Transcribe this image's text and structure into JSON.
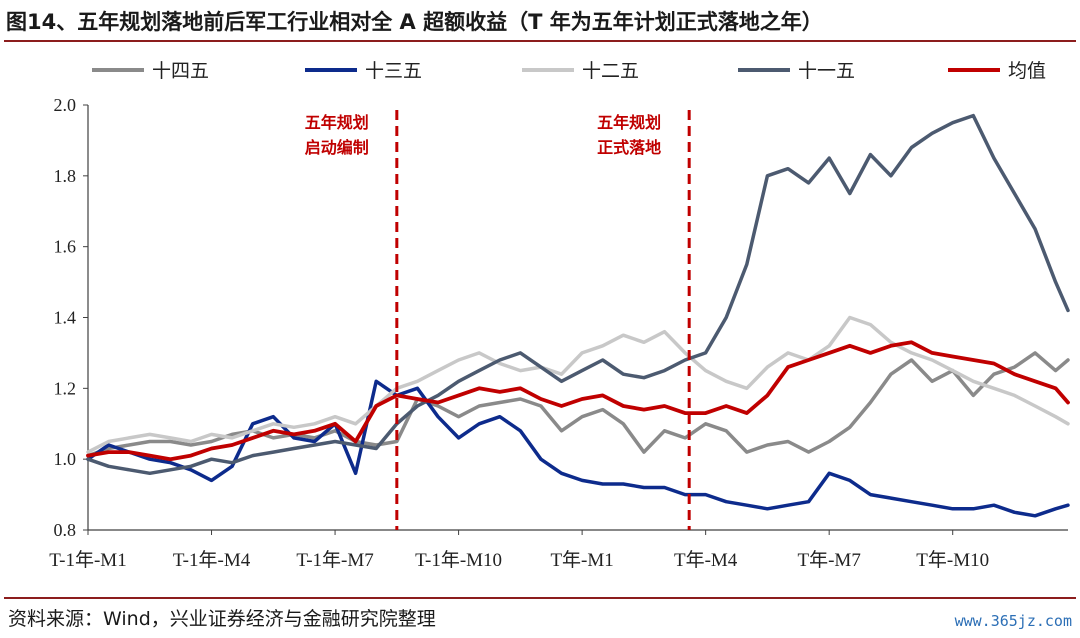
{
  "header": {
    "title": "图14、五年规划落地前后军工行业相对全 A 超额收益（T 年为五年计划正式落地之年）"
  },
  "footer": {
    "source": "资料来源：Wind，兴业证券经济与金融研究院整理",
    "watermark": "www.365jz.com"
  },
  "colors": {
    "s14": "#8a8a8a",
    "s13": "#0d2b8c",
    "s12": "#c8c8c8",
    "s11": "#4c5a70",
    "mean": "#c00000",
    "vline": "#c00000",
    "axis": "#404040"
  },
  "chart_data": {
    "type": "line",
    "xlabel": "",
    "ylabel": "",
    "ylim": [
      0.8,
      2.0
    ],
    "yticks": [
      "0.8",
      "1.0",
      "1.2",
      "1.4",
      "1.6",
      "1.8",
      "2.0"
    ],
    "x_ticks": [
      "T-1年-M1",
      "T-1年-M4",
      "T-1年-M7",
      "T-1年-M10",
      "T年-M1",
      "T年-M4",
      "T年-M7",
      "T年-M10"
    ],
    "x_range_months": [
      0,
      23.8
    ],
    "legend_position": "top",
    "grid": false,
    "annotations": [
      {
        "text_lines": [
          "五年规划",
          "启动编制"
        ],
        "x_month": 7.5
      },
      {
        "text_lines": [
          "五年规划",
          "正式落地"
        ],
        "x_month": 14.6
      }
    ],
    "series": [
      {
        "name": "十四五",
        "color_key": "s14",
        "x": [
          0,
          0.5,
          1,
          1.5,
          2,
          2.5,
          3,
          3.5,
          4,
          4.5,
          5,
          5.5,
          6,
          6.5,
          7,
          7.5,
          8,
          8.5,
          9,
          9.5,
          10,
          10.5,
          11,
          11.5,
          12,
          12.5,
          13,
          13.5,
          14,
          14.5,
          15,
          15.5,
          16,
          16.5,
          17,
          17.5,
          18,
          18.5,
          19,
          19.5,
          20,
          20.5,
          21,
          21.5,
          22,
          22.5,
          23,
          23.5,
          23.8
        ],
        "y": [
          1.01,
          1.03,
          1.04,
          1.05,
          1.05,
          1.04,
          1.05,
          1.07,
          1.08,
          1.06,
          1.07,
          1.06,
          1.08,
          1.05,
          1.04,
          1.05,
          1.17,
          1.15,
          1.12,
          1.15,
          1.16,
          1.17,
          1.15,
          1.08,
          1.12,
          1.14,
          1.1,
          1.02,
          1.08,
          1.06,
          1.1,
          1.08,
          1.02,
          1.04,
          1.05,
          1.02,
          1.05,
          1.09,
          1.16,
          1.24,
          1.28,
          1.22,
          1.25,
          1.18,
          1.24,
          1.26,
          1.3,
          1.25,
          1.28
        ]
      },
      {
        "name": "十三五",
        "color_key": "s13",
        "x": [
          0,
          0.5,
          1,
          1.5,
          2,
          2.5,
          3,
          3.5,
          4,
          4.5,
          5,
          5.5,
          6,
          6.5,
          7,
          7.5,
          8,
          8.5,
          9,
          9.5,
          10,
          10.5,
          11,
          11.5,
          12,
          12.5,
          13,
          13.5,
          14,
          14.5,
          15,
          15.5,
          16,
          16.5,
          17,
          17.5,
          18,
          18.5,
          19,
          19.5,
          20,
          20.5,
          21,
          21.5,
          22,
          22.5,
          23,
          23.5,
          23.8
        ],
        "y": [
          1.0,
          1.04,
          1.02,
          1.0,
          0.99,
          0.97,
          0.94,
          0.98,
          1.1,
          1.12,
          1.06,
          1.05,
          1.1,
          0.96,
          1.22,
          1.18,
          1.2,
          1.12,
          1.06,
          1.1,
          1.12,
          1.08,
          1.0,
          0.96,
          0.94,
          0.93,
          0.93,
          0.92,
          0.92,
          0.9,
          0.9,
          0.88,
          0.87,
          0.86,
          0.87,
          0.88,
          0.96,
          0.94,
          0.9,
          0.89,
          0.88,
          0.87,
          0.86,
          0.86,
          0.87,
          0.85,
          0.84,
          0.86,
          0.87
        ]
      },
      {
        "name": "十二五",
        "color_key": "s12",
        "x": [
          0,
          0.5,
          1,
          1.5,
          2,
          2.5,
          3,
          3.5,
          4,
          4.5,
          5,
          5.5,
          6,
          6.5,
          7,
          7.5,
          8,
          8.5,
          9,
          9.5,
          10,
          10.5,
          11,
          11.5,
          12,
          12.5,
          13,
          13.5,
          14,
          14.5,
          15,
          15.5,
          16,
          16.5,
          17,
          17.5,
          18,
          18.5,
          19,
          19.5,
          20,
          20.5,
          21,
          21.5,
          22,
          22.5,
          23,
          23.5,
          23.8
        ],
        "y": [
          1.02,
          1.05,
          1.06,
          1.07,
          1.06,
          1.05,
          1.07,
          1.06,
          1.08,
          1.1,
          1.09,
          1.1,
          1.12,
          1.1,
          1.15,
          1.2,
          1.22,
          1.25,
          1.28,
          1.3,
          1.27,
          1.25,
          1.26,
          1.24,
          1.3,
          1.32,
          1.35,
          1.33,
          1.36,
          1.3,
          1.25,
          1.22,
          1.2,
          1.26,
          1.3,
          1.28,
          1.32,
          1.4,
          1.38,
          1.33,
          1.3,
          1.28,
          1.25,
          1.22,
          1.2,
          1.18,
          1.15,
          1.12,
          1.1
        ]
      },
      {
        "name": "十一五",
        "color_key": "s11",
        "x": [
          0,
          0.5,
          1,
          1.5,
          2,
          2.5,
          3,
          3.5,
          4,
          4.5,
          5,
          5.5,
          6,
          6.5,
          7,
          7.5,
          8,
          8.5,
          9,
          9.5,
          10,
          10.5,
          11,
          11.5,
          12,
          12.5,
          13,
          13.5,
          14,
          14.5,
          15,
          15.5,
          16,
          16.5,
          17,
          17.5,
          18,
          18.5,
          19,
          19.5,
          20,
          20.5,
          21,
          21.5,
          22,
          22.5,
          23,
          23.5,
          23.8
        ],
        "y": [
          1.0,
          0.98,
          0.97,
          0.96,
          0.97,
          0.98,
          1.0,
          0.99,
          1.01,
          1.02,
          1.03,
          1.04,
          1.05,
          1.04,
          1.03,
          1.1,
          1.15,
          1.18,
          1.22,
          1.25,
          1.28,
          1.3,
          1.26,
          1.22,
          1.25,
          1.28,
          1.24,
          1.23,
          1.25,
          1.28,
          1.3,
          1.4,
          1.55,
          1.8,
          1.82,
          1.78,
          1.85,
          1.75,
          1.86,
          1.8,
          1.88,
          1.92,
          1.95,
          1.97,
          1.85,
          1.75,
          1.65,
          1.5,
          1.42
        ]
      },
      {
        "name": "均值",
        "color_key": "mean",
        "x": [
          0,
          0.5,
          1,
          1.5,
          2,
          2.5,
          3,
          3.5,
          4,
          4.5,
          5,
          5.5,
          6,
          6.5,
          7,
          7.5,
          8,
          8.5,
          9,
          9.5,
          10,
          10.5,
          11,
          11.5,
          12,
          12.5,
          13,
          13.5,
          14,
          14.5,
          15,
          15.5,
          16,
          16.5,
          17,
          17.5,
          18,
          18.5,
          19,
          19.5,
          20,
          20.5,
          21,
          21.5,
          22,
          22.5,
          23,
          23.5,
          23.8
        ],
        "y": [
          1.01,
          1.02,
          1.02,
          1.01,
          1.0,
          1.01,
          1.03,
          1.04,
          1.06,
          1.08,
          1.07,
          1.08,
          1.1,
          1.05,
          1.15,
          1.18,
          1.17,
          1.16,
          1.18,
          1.2,
          1.19,
          1.2,
          1.17,
          1.15,
          1.17,
          1.18,
          1.15,
          1.14,
          1.15,
          1.13,
          1.13,
          1.15,
          1.13,
          1.18,
          1.26,
          1.28,
          1.3,
          1.32,
          1.3,
          1.32,
          1.33,
          1.3,
          1.29,
          1.28,
          1.27,
          1.24,
          1.22,
          1.2,
          1.16
        ]
      }
    ]
  }
}
